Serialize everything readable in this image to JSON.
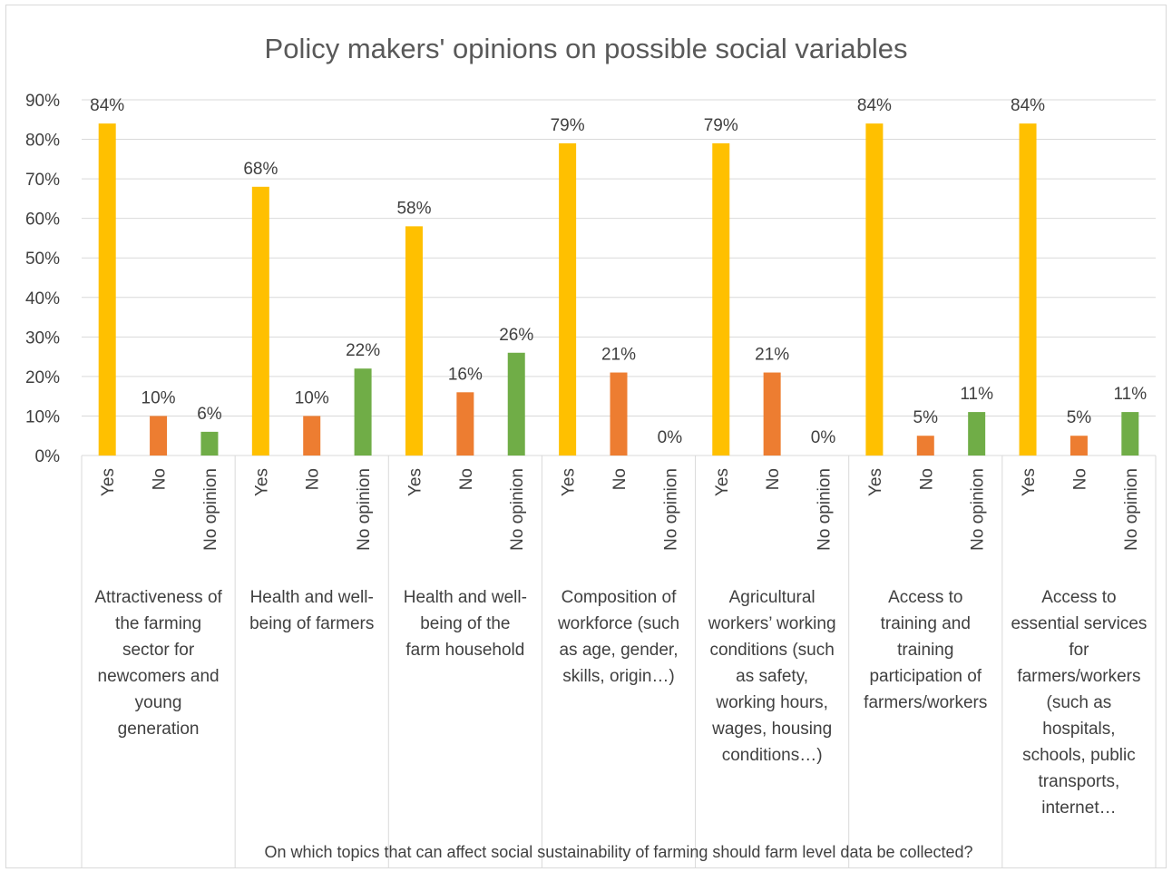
{
  "chart_data": {
    "type": "bar",
    "title": "Policy makers' opinions on possible social variables",
    "xlabel": "On which topics that can affect social sustainability of farming should farm level data be collected?",
    "ylabel": "",
    "ylim": [
      0,
      90
    ],
    "yticks": [
      "0%",
      "10%",
      "20%",
      "30%",
      "40%",
      "50%",
      "60%",
      "70%",
      "80%",
      "90%"
    ],
    "grid": true,
    "legend": "none",
    "subcategories": [
      "Yes",
      "No",
      "No opinion"
    ],
    "colors": [
      "#FFC000",
      "#ED7D31",
      "#70AD47"
    ],
    "groups": [
      {
        "name": "Attractiveness of the farming sector for newcomers and young generation",
        "lines": [
          "Attractiveness of",
          "the farming",
          "sector for",
          "newcomers and",
          "young",
          "generation"
        ],
        "values": [
          84,
          10,
          6
        ],
        "labels": [
          "84%",
          "10%",
          "6%"
        ]
      },
      {
        "name": "Health and well-being of farmers",
        "lines": [
          "Health and well-",
          "being of farmers"
        ],
        "values": [
          68,
          10,
          22
        ],
        "labels": [
          "68%",
          "10%",
          "22%"
        ]
      },
      {
        "name": "Health and well-being of the farm household",
        "lines": [
          "Health and well-",
          "being of the",
          "farm household"
        ],
        "values": [
          58,
          16,
          26
        ],
        "labels": [
          "58%",
          "16%",
          "26%"
        ]
      },
      {
        "name": "Composition of workforce (such as age, gender, skills, origin…)",
        "lines": [
          "Composition of",
          "workforce (such",
          "as age, gender,",
          "skills, origin…)"
        ],
        "values": [
          79,
          21,
          0
        ],
        "labels": [
          "79%",
          "21%",
          "0%"
        ]
      },
      {
        "name": "Agricultural workers’ working conditions (such as safety, working hours, wages, housing conditions…)",
        "lines": [
          "Agricultural",
          "workers’ working",
          "conditions (such",
          "as safety,",
          "working hours,",
          "wages, housing",
          "conditions…)"
        ],
        "values": [
          79,
          21,
          0
        ],
        "labels": [
          "79%",
          "21%",
          "0%"
        ]
      },
      {
        "name": "Access to training and training participation of farmers/workers",
        "lines": [
          "Access to",
          "training and",
          "training",
          "participation of",
          "farmers/workers"
        ],
        "values": [
          84,
          5,
          11
        ],
        "labels": [
          "84%",
          "5%",
          "11%"
        ]
      },
      {
        "name": "Access to essential services for farmers/workers (such as hospitals, schools, public transports, internet…",
        "lines": [
          "Access to",
          "essential services",
          "for",
          "farmers/workers",
          "(such as",
          "hospitals,",
          "schools, public",
          "transports,",
          "internet…"
        ],
        "values": [
          84,
          5,
          11
        ],
        "labels": [
          "84%",
          "5%",
          "11%"
        ]
      }
    ]
  }
}
